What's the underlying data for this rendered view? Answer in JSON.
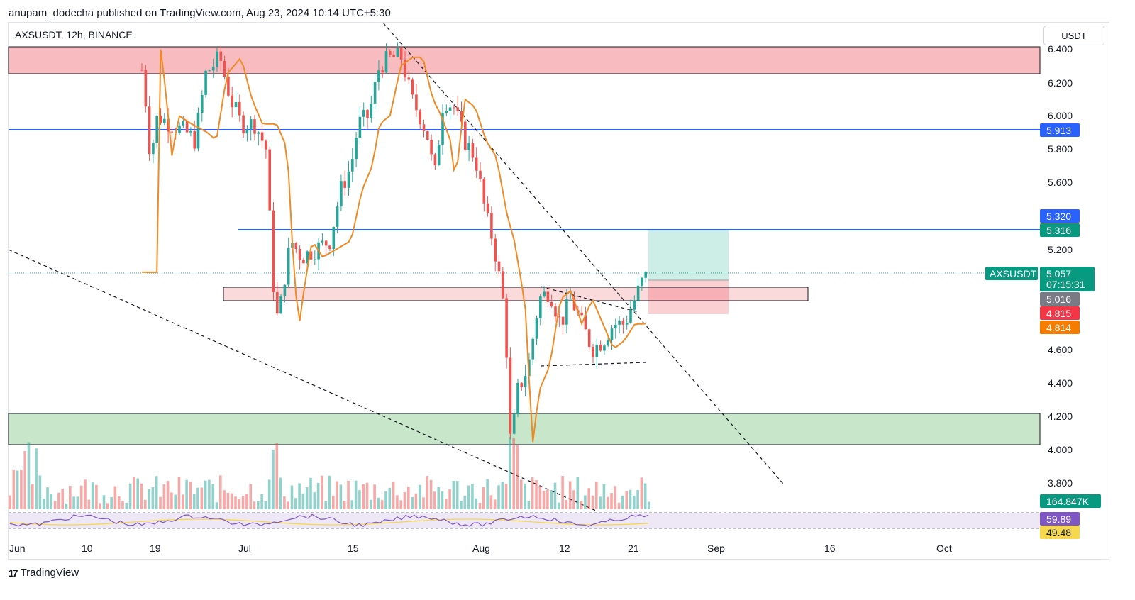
{
  "header": {
    "published": "anupam_dodecha published on TradingView.com, Aug 23, 2024 10:14 UTC+5:30"
  },
  "chart": {
    "symbol": "AXSUSDT, 12h, BINANCE",
    "currency": "USDT",
    "brand": "TradingView"
  },
  "price_axis": {
    "ticks": [
      "6.400",
      "6.200",
      "6.000",
      "5.800",
      "5.600",
      "5.200",
      "4.600",
      "4.400",
      "4.200",
      "4.000",
      "3.800"
    ]
  },
  "time_axis": {
    "ticks": [
      "Jun",
      "10",
      "19",
      "Jul",
      "15",
      "Aug",
      "12",
      "21",
      "Sep",
      "16",
      "Oct"
    ]
  },
  "badges": {
    "resistance_line": "5.913",
    "target_top": "5.320",
    "target_line": "5.316",
    "symbol_tag": "AXSUSDT",
    "last_price": "5.057",
    "countdown": "07:15:31",
    "entry": "5.016",
    "stop": "4.815",
    "ma_value": "4.814",
    "volume": "164.847K",
    "rsi": "59.89",
    "rsi_ma": "49.48"
  },
  "colors": {
    "up": "#26a69a",
    "down": "#ef5350",
    "ma": "#f08a24",
    "level_line": "#2962ff",
    "supply_zone": "#f8bcc0",
    "demand_zone": "#c8e6c9",
    "target_zone": "#cdeee6",
    "stop_zone": "#fbd0d3",
    "rsi": "#7e57c2",
    "rsi_ma": "#f5d84e"
  },
  "chart_data": {
    "type": "candlestick",
    "series": [
      {
        "name": "AXSUSDT",
        "type": "candlestick",
        "interval": "12h",
        "period": "Jun 2024 - Aug 23, 2024",
        "last": 5.057
      },
      {
        "name": "MA",
        "type": "line",
        "last": 4.814
      },
      {
        "name": "Volume",
        "type": "bar",
        "last": "164.847K"
      },
      {
        "name": "RSI",
        "type": "line",
        "last": 59.89
      },
      {
        "name": "RSI MA",
        "type": "line",
        "last": 49.48
      }
    ],
    "levels": [
      5.913,
      5.316,
      5.32,
      5.016,
      4.815
    ],
    "zones": [
      {
        "type": "supply",
        "from": 6.24,
        "to": 6.4
      },
      {
        "type": "support",
        "from": 4.94,
        "to": 5.02
      },
      {
        "type": "demand",
        "from": 4.02,
        "to": 4.21
      }
    ],
    "ylim": [
      3.75,
      6.45
    ]
  }
}
